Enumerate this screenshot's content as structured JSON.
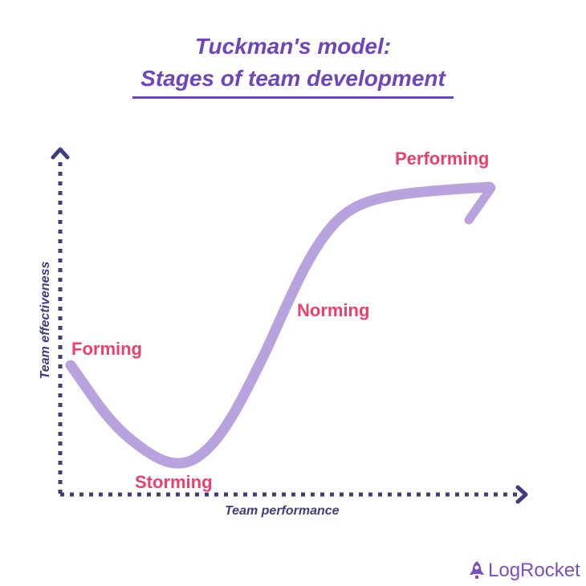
{
  "title": {
    "line1": "Tuckman's model:",
    "line2": "Stages of team development"
  },
  "axes": {
    "x_label": "Team performance",
    "y_label": "Team effectiveness"
  },
  "stages": [
    "Forming",
    "Storming",
    "Norming",
    "Performing"
  ],
  "colors": {
    "title": "#6f45bb",
    "axis": "#3c3e7e",
    "curve": "#b8a3de",
    "stage_label": "#ee3f6a"
  },
  "logo": {
    "text": "LogRocket",
    "icon": "rocket-icon"
  }
}
